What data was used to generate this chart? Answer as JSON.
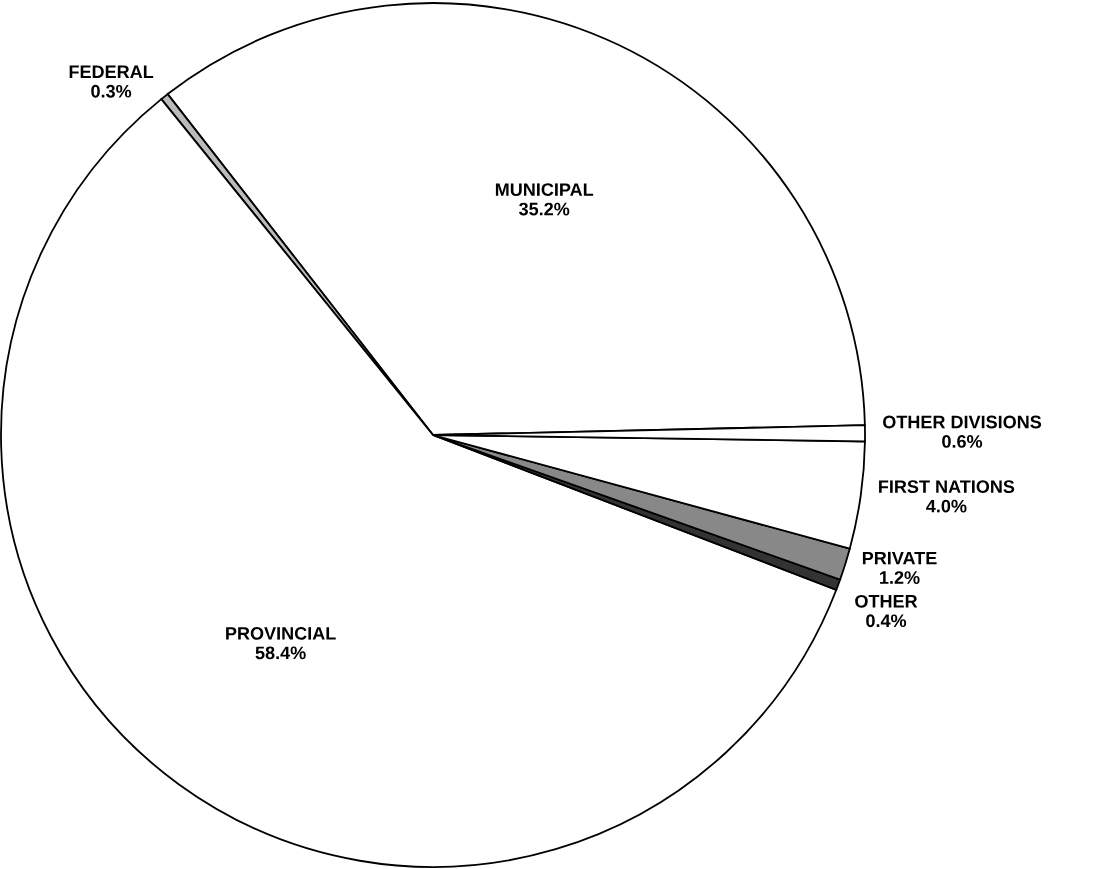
{
  "chart_data": {
    "type": "pie",
    "categories": [
      "MUNICIPAL",
      "FEDERAL",
      "PROVINCIAL",
      "OTHER",
      "PRIVATE",
      "FIRST NATIONS",
      "OTHER DIVISIONS"
    ],
    "values": [
      35.2,
      0.3,
      58.4,
      0.4,
      1.2,
      4.0,
      0.6
    ],
    "value_labels": [
      "35.2%",
      "0.3%",
      "58.4%",
      "0.4%",
      "1.2%",
      "4.0%",
      "0.6%"
    ],
    "colors": [
      "#ffffff",
      "#bbbbbb",
      "#ffffff",
      "#333333",
      "#888888",
      "#ffffff",
      "#ffffff"
    ]
  }
}
